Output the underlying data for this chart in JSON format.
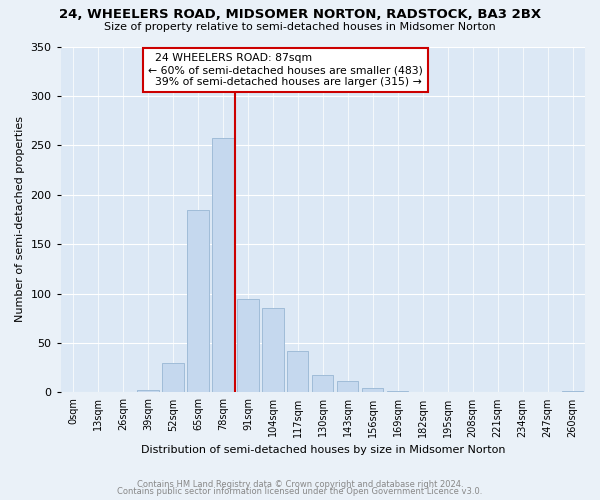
{
  "title": "24, WHEELERS ROAD, MIDSOMER NORTON, RADSTOCK, BA3 2BX",
  "subtitle": "Size of property relative to semi-detached houses in Midsomer Norton",
  "xlabel": "Distribution of semi-detached houses by size in Midsomer Norton",
  "ylabel": "Number of semi-detached properties",
  "footnote1": "Contains HM Land Registry data © Crown copyright and database right 2024.",
  "footnote2": "Contains public sector information licensed under the Open Government Licence v3.0.",
  "property_label": "24 WHEELERS ROAD: 87sqm",
  "pct_smaller": 60,
  "pct_larger": 39,
  "n_smaller": 483,
  "n_larger": 315,
  "bar_color": "#c5d8ee",
  "bar_edge_color": "#a0bcd8",
  "line_color": "#cc0000",
  "box_edge_color": "#cc0000",
  "annotation_box_color": "#ffffff",
  "categories": [
    "0sqm",
    "13sqm",
    "26sqm",
    "39sqm",
    "52sqm",
    "65sqm",
    "78sqm",
    "91sqm",
    "104sqm",
    "117sqm",
    "130sqm",
    "143sqm",
    "156sqm",
    "169sqm",
    "182sqm",
    "195sqm",
    "208sqm",
    "221sqm",
    "234sqm",
    "247sqm",
    "260sqm"
  ],
  "values": [
    0,
    0,
    0,
    2,
    30,
    185,
    257,
    95,
    85,
    42,
    18,
    12,
    4,
    1,
    0,
    0,
    0,
    0,
    0,
    0,
    1
  ],
  "xlim": [
    -0.5,
    20.5
  ],
  "ylim": [
    0,
    350
  ],
  "yticks": [
    0,
    50,
    100,
    150,
    200,
    250,
    300,
    350
  ],
  "property_bin_index": 7,
  "background_color": "#eaf1f8",
  "plot_bg_color": "#dce8f5"
}
